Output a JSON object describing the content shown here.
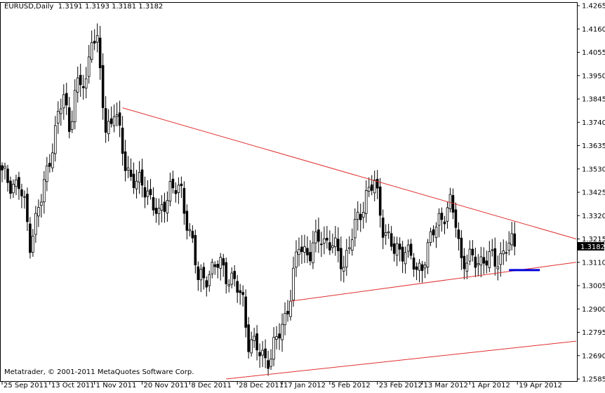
{
  "header": {
    "symbol": "EURUSD,Daily",
    "ohlc": "1.3191 1.3193 1.3181 1.3182"
  },
  "footer": {
    "copyright": "Metatrader, © 2001-2011 MetaQuotes Software Corp."
  },
  "colors": {
    "up_candle": "#ffffff",
    "down_candle": "#000000",
    "candle_outline": "#000000",
    "trendline": "#e03030",
    "marker": "#0000dd",
    "price_box": "#000000"
  },
  "chart_data": {
    "type": "candlestick",
    "symbol": "EURUSD",
    "timeframe": "Daily",
    "ylim": [
      1.2585,
      1.4265
    ],
    "y_ticks": [
      1.4265,
      1.416,
      1.4055,
      1.395,
      1.3845,
      1.374,
      1.3635,
      1.353,
      1.3425,
      1.332,
      1.3215,
      1.311,
      1.3005,
      1.29,
      1.2795,
      1.269,
      1.2585
    ],
    "current_price": 1.3182,
    "x_labels": [
      "25 Sep 2011",
      "13 Oct 2011",
      "1 Nov 2011",
      "20 Nov 2011",
      "8 Dec 2011",
      "28 Dec 2011",
      "17 Jan 2012",
      "5 Feb 2012",
      "23 Feb 2012",
      "13 Mar 2012",
      "1 Apr 2012",
      "19 Apr 2012"
    ],
    "bar_count": 184,
    "key_prices": [
      {
        "bar": 0,
        "price": 1.35
      },
      {
        "bar": 6,
        "price": 1.345
      },
      {
        "bar": 8,
        "price": 1.336
      },
      {
        "bar": 10,
        "price": 1.321
      },
      {
        "bar": 14,
        "price": 1.339
      },
      {
        "bar": 18,
        "price": 1.365
      },
      {
        "bar": 22,
        "price": 1.386
      },
      {
        "bar": 24,
        "price": 1.372
      },
      {
        "bar": 26,
        "price": 1.388
      },
      {
        "bar": 30,
        "price": 1.392
      },
      {
        "bar": 32,
        "price": 1.415
      },
      {
        "bar": 34,
        "price": 1.408
      },
      {
        "bar": 37,
        "price": 1.37
      },
      {
        "bar": 40,
        "price": 1.38
      },
      {
        "bar": 44,
        "price": 1.355
      },
      {
        "bar": 48,
        "price": 1.346
      },
      {
        "bar": 52,
        "price": 1.344
      },
      {
        "bar": 56,
        "price": 1.33
      },
      {
        "bar": 60,
        "price": 1.346
      },
      {
        "bar": 64,
        "price": 1.341
      },
      {
        "bar": 68,
        "price": 1.32
      },
      {
        "bar": 70,
        "price": 1.302
      },
      {
        "bar": 74,
        "price": 1.307
      },
      {
        "bar": 78,
        "price": 1.31
      },
      {
        "bar": 82,
        "price": 1.303
      },
      {
        "bar": 86,
        "price": 1.294
      },
      {
        "bar": 88,
        "price": 1.276
      },
      {
        "bar": 92,
        "price": 1.27
      },
      {
        "bar": 96,
        "price": 1.268
      },
      {
        "bar": 100,
        "price": 1.283
      },
      {
        "bar": 103,
        "price": 1.296
      },
      {
        "bar": 106,
        "price": 1.319
      },
      {
        "bar": 110,
        "price": 1.315
      },
      {
        "bar": 114,
        "price": 1.323
      },
      {
        "bar": 118,
        "price": 1.318
      },
      {
        "bar": 122,
        "price": 1.311
      },
      {
        "bar": 126,
        "price": 1.326
      },
      {
        "bar": 130,
        "price": 1.342
      },
      {
        "bar": 133,
        "price": 1.346
      },
      {
        "bar": 136,
        "price": 1.328
      },
      {
        "bar": 140,
        "price": 1.315
      },
      {
        "bar": 144,
        "price": 1.318
      },
      {
        "bar": 148,
        "price": 1.306
      },
      {
        "bar": 152,
        "price": 1.317
      },
      {
        "bar": 156,
        "price": 1.331
      },
      {
        "bar": 160,
        "price": 1.336
      },
      {
        "bar": 162,
        "price": 1.329
      },
      {
        "bar": 164,
        "price": 1.313
      },
      {
        "bar": 168,
        "price": 1.311
      },
      {
        "bar": 172,
        "price": 1.313
      },
      {
        "bar": 176,
        "price": 1.311
      },
      {
        "bar": 180,
        "price": 1.318
      },
      {
        "bar": 183,
        "price": 1.3182
      }
    ],
    "trendlines": [
      {
        "name": "upper",
        "from": {
          "bar": 43,
          "price": 1.3805
        },
        "to": {
          "bar": 205,
          "price": 1.3215
        }
      },
      {
        "name": "lower-1",
        "from": {
          "bar": 103,
          "price": 1.2935
        },
        "to": {
          "bar": 205,
          "price": 1.311
        }
      },
      {
        "name": "lower-2",
        "from": {
          "bar": 80,
          "price": 1.2585
        },
        "to": {
          "bar": 205,
          "price": 1.2755
        }
      }
    ],
    "marker": {
      "from_bar": 181,
      "to_bar": 192,
      "price": 1.3075
    }
  }
}
